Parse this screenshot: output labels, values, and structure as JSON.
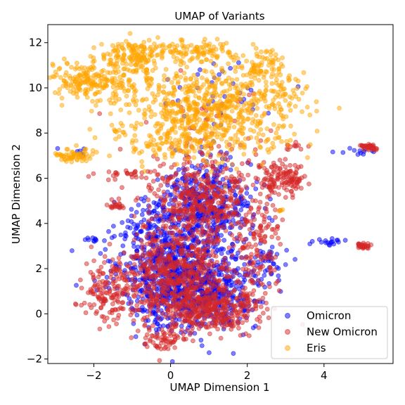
{
  "chart_data": {
    "type": "scatter",
    "title": "UMAP of Variants",
    "xlabel": "UMAP Dimension 1",
    "ylabel": "UMAP Dimension 2",
    "xlim": [
      -3.2,
      5.8
    ],
    "ylim": [
      -2.2,
      12.8
    ],
    "xticks": [
      -2,
      0,
      2,
      4
    ],
    "yticks": [
      -2,
      0,
      2,
      4,
      6,
      8,
      10,
      12
    ],
    "grid": false,
    "legend": {
      "placement": "bottom-right"
    },
    "marker_alpha": 0.5,
    "series": [
      {
        "name": "Omicron",
        "color": "#0000ff",
        "clusters": [
          {
            "cx": 0.2,
            "cy": 1.5,
            "sx": 0.75,
            "sy": 1.1,
            "n": 700
          },
          {
            "cx": 0.9,
            "cy": 4.8,
            "sx": 0.6,
            "sy": 1.0,
            "n": 450
          },
          {
            "cx": 1.3,
            "cy": 1.0,
            "sx": 0.6,
            "sy": 0.9,
            "n": 250
          },
          {
            "cx": -0.5,
            "cy": 3.5,
            "sx": 0.5,
            "sy": 0.8,
            "n": 140
          },
          {
            "cx": 2.5,
            "cy": 2.2,
            "sx": 0.3,
            "sy": 0.5,
            "n": 40
          },
          {
            "cx": 4.2,
            "cy": 3.2,
            "sx": 0.25,
            "sy": 0.08,
            "n": 18
          },
          {
            "cx": 4.9,
            "cy": 7.2,
            "sx": 0.25,
            "sy": 0.08,
            "n": 12
          },
          {
            "cx": -2.0,
            "cy": 3.3,
            "sx": 0.15,
            "sy": 0.05,
            "n": 10
          },
          {
            "cx": 1.2,
            "cy": 9.8,
            "sx": 0.8,
            "sy": 0.8,
            "n": 35
          },
          {
            "cx": -2.4,
            "cy": 7.0,
            "sx": 0.2,
            "sy": 0.2,
            "n": 8
          }
        ]
      },
      {
        "name": "New Omicron",
        "color": "#d62728",
        "clusters": [
          {
            "cx": 0.1,
            "cy": 1.5,
            "sx": 0.8,
            "sy": 1.1,
            "n": 650
          },
          {
            "cx": 0.8,
            "cy": 5.0,
            "sx": 0.65,
            "sy": 1.0,
            "n": 450
          },
          {
            "cx": 1.2,
            "cy": 0.2,
            "sx": 0.6,
            "sy": 0.5,
            "n": 300
          },
          {
            "cx": 2.9,
            "cy": 6.0,
            "sx": 0.3,
            "sy": 0.35,
            "n": 130
          },
          {
            "cx": -1.6,
            "cy": 1.0,
            "sx": 0.3,
            "sy": 0.6,
            "n": 120
          },
          {
            "cx": 2.3,
            "cy": 3.0,
            "sx": 0.35,
            "sy": 1.0,
            "n": 120
          },
          {
            "cx": 5.2,
            "cy": 7.4,
            "sx": 0.12,
            "sy": 0.06,
            "n": 40
          },
          {
            "cx": 5.0,
            "cy": 3.0,
            "sx": 0.12,
            "sy": 0.05,
            "n": 30
          },
          {
            "cx": -0.1,
            "cy": -1.1,
            "sx": 0.3,
            "sy": 0.25,
            "n": 60
          },
          {
            "cx": -1.5,
            "cy": 4.8,
            "sx": 0.12,
            "sy": 0.1,
            "n": 20
          },
          {
            "cx": 1.0,
            "cy": 8.0,
            "sx": 1.0,
            "sy": 1.0,
            "n": 60
          },
          {
            "cx": -1.0,
            "cy": 6.2,
            "sx": 0.5,
            "sy": 0.1,
            "n": 30
          },
          {
            "cx": 3.2,
            "cy": 7.4,
            "sx": 0.15,
            "sy": 0.1,
            "n": 12
          }
        ]
      },
      {
        "name": "Eris",
        "color": "#ffa500",
        "clusters": [
          {
            "cx": 1.0,
            "cy": 9.0,
            "sx": 1.1,
            "sy": 1.0,
            "n": 700
          },
          {
            "cx": -2.0,
            "cy": 10.3,
            "sx": 0.6,
            "sy": 0.45,
            "n": 220
          },
          {
            "cx": -1.0,
            "cy": 11.4,
            "sx": 0.4,
            "sy": 0.35,
            "n": 140
          },
          {
            "cx": 0.8,
            "cy": 11.6,
            "sx": 0.6,
            "sy": 0.25,
            "n": 100
          },
          {
            "cx": 2.4,
            "cy": 10.8,
            "sx": 0.3,
            "sy": 0.5,
            "n": 80
          },
          {
            "cx": -2.5,
            "cy": 7.0,
            "sx": 0.25,
            "sy": 0.15,
            "n": 60
          },
          {
            "cx": 3.0,
            "cy": 9.6,
            "sx": 0.2,
            "sy": 0.4,
            "n": 30
          },
          {
            "cx": 0.0,
            "cy": 7.5,
            "sx": 0.6,
            "sy": 0.3,
            "n": 60
          },
          {
            "cx": -1.3,
            "cy": 8.1,
            "sx": 0.1,
            "sy": 0.05,
            "n": 6
          },
          {
            "cx": 2.9,
            "cy": 4.6,
            "sx": 0.06,
            "sy": 0.06,
            "n": 4
          }
        ]
      }
    ]
  }
}
